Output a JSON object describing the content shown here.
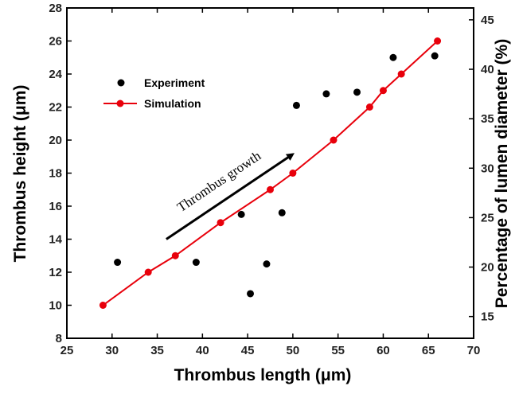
{
  "chart_data": {
    "type": "scatter",
    "xlabel": "Thrombus length (μm)",
    "ylabel": "Thrombus height (μm)",
    "y2label": "Percentage of lumen diameter (%)",
    "xlim": [
      25,
      70
    ],
    "ylim": [
      8,
      28
    ],
    "y2lim": [
      12.8,
      46.2
    ],
    "x_ticks": [
      25,
      30,
      35,
      40,
      45,
      50,
      55,
      60,
      65,
      70
    ],
    "y_ticks": [
      8,
      10,
      12,
      14,
      16,
      18,
      20,
      22,
      24,
      26,
      28
    ],
    "y2_ticks": [
      15,
      20,
      25,
      30,
      35,
      40,
      45
    ],
    "grid": false,
    "legend_position": "upper-left",
    "series": [
      {
        "name": "Experiment",
        "type": "scatter",
        "color": "#000000",
        "points": [
          {
            "x": 30.6,
            "y": 12.6
          },
          {
            "x": 39.3,
            "y": 12.6
          },
          {
            "x": 44.3,
            "y": 15.5
          },
          {
            "x": 45.3,
            "y": 10.7
          },
          {
            "x": 47.1,
            "y": 12.5
          },
          {
            "x": 48.8,
            "y": 15.6
          },
          {
            "x": 50.4,
            "y": 22.1
          },
          {
            "x": 53.7,
            "y": 22.8
          },
          {
            "x": 57.1,
            "y": 22.9
          },
          {
            "x": 61.1,
            "y": 25.0
          },
          {
            "x": 65.7,
            "y": 25.1
          }
        ]
      },
      {
        "name": "Simulation",
        "type": "line",
        "color": "#e8000b",
        "points": [
          {
            "x": 29.0,
            "y": 10.0
          },
          {
            "x": 34.0,
            "y": 12.0
          },
          {
            "x": 37.0,
            "y": 13.0
          },
          {
            "x": 42.0,
            "y": 15.0
          },
          {
            "x": 47.5,
            "y": 17.0
          },
          {
            "x": 50.0,
            "y": 18.0
          },
          {
            "x": 54.5,
            "y": 20.0
          },
          {
            "x": 58.5,
            "y": 22.0
          },
          {
            "x": 60.0,
            "y": 23.0
          },
          {
            "x": 62.0,
            "y": 24.0
          },
          {
            "x": 66.0,
            "y": 26.0
          }
        ]
      }
    ],
    "annotations": [
      {
        "text": "Thrombus growth",
        "arrow_from": {
          "x": 36.0,
          "y": 14.0
        },
        "arrow_to": {
          "x": 49.6,
          "y": 19.0
        }
      }
    ]
  }
}
